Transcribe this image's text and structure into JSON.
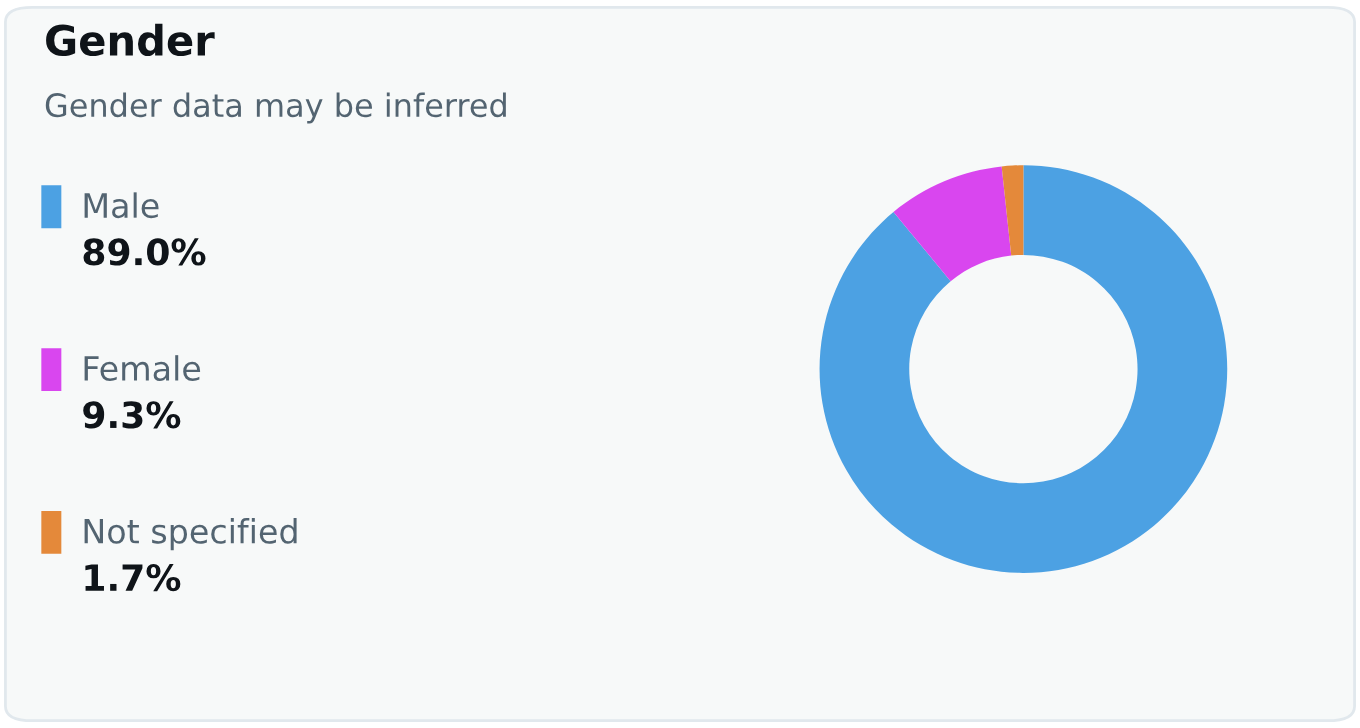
{
  "chart_data": {
    "type": "donut",
    "title": "Gender",
    "subtitle": "Gender data may be inferred",
    "categories": [
      "Male",
      "Female",
      "Not specified"
    ],
    "values": [
      89.0,
      9.3,
      1.7
    ],
    "value_labels": [
      "89.0%",
      "9.3%",
      "1.7%"
    ],
    "colors": [
      "#4ca1e3",
      "#d946ef",
      "#e4893a"
    ],
    "legend": "left"
  }
}
